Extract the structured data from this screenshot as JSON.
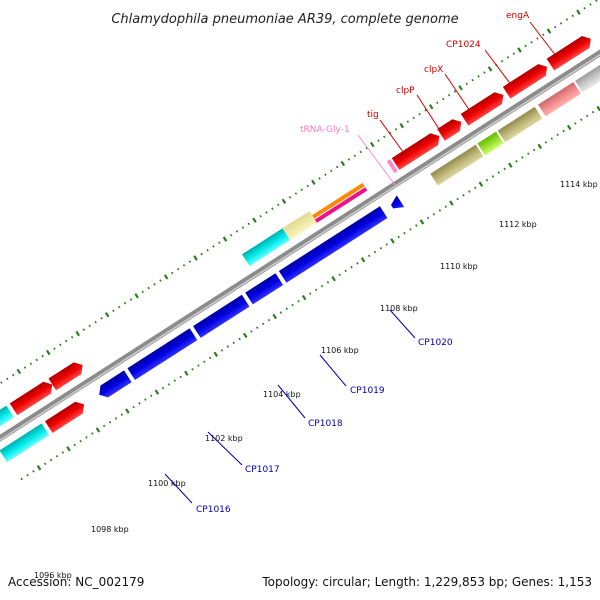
{
  "title": "Chlamydophila pneumoniae AR39, complete genome",
  "footer": {
    "accession": "Accession: NC_002179",
    "summary": "Topology: circular; Length: 1,229,853 bp; Genes: 1,153"
  },
  "colors": {
    "backbone": "#8c8c8c",
    "tick": "#2e7d1e",
    "red_label": "#cc0000",
    "blue_label": "#0000aa",
    "pink_label": "#ff77bb"
  },
  "ticks": [
    {
      "label": "1098 kbp"
    },
    {
      "label": "1100 kbp"
    },
    {
      "label": "1102 kbp"
    },
    {
      "label": "1104 kbp"
    },
    {
      "label": "1106 kbp"
    },
    {
      "label": "1108 kbp"
    },
    {
      "label": "1110 kbp"
    },
    {
      "label": "1112 kbp"
    },
    {
      "label": "1114 kbp"
    },
    {
      "label": "1096 kbp"
    }
  ],
  "gene_labels": {
    "engA": "engA",
    "CP1024": "CP1024",
    "clpX": "clpX",
    "clpP": "clpP",
    "tig": "tig",
    "tRNA_Gly_1": "tRNA-Gly-1",
    "CP1020": "CP1020",
    "CP1019": "CP1019",
    "CP1018": "CP1018",
    "CP1017": "CP1017",
    "CP1016": "CP1016"
  }
}
